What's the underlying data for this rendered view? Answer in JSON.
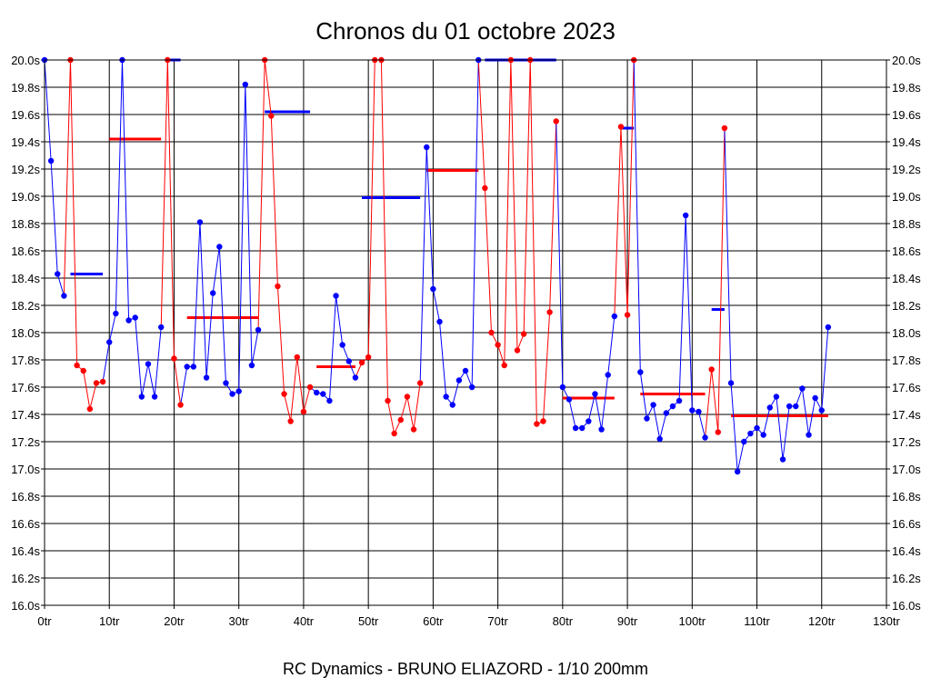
{
  "chart_data": {
    "type": "line",
    "title": "Chronos du 01 octobre 2023",
    "footer": "RC Dynamics - BRUNO ELIAZORD - 1/10 200mm",
    "xlim": [
      0,
      130
    ],
    "ylim": [
      16.0,
      20.0
    ],
    "x_ticks": [
      0,
      10,
      20,
      30,
      40,
      50,
      60,
      70,
      80,
      90,
      100,
      110,
      120,
      130
    ],
    "x_tick_labels": [
      "0tr",
      "10tr",
      "20tr",
      "30tr",
      "40tr",
      "50tr",
      "60tr",
      "70tr",
      "80tr",
      "90tr",
      "100tr",
      "110tr",
      "120tr",
      "130tr"
    ],
    "y_ticks": [
      16.0,
      16.2,
      16.4,
      16.6,
      16.8,
      17.0,
      17.2,
      17.4,
      17.6,
      17.8,
      18.0,
      18.2,
      18.4,
      18.6,
      18.8,
      19.0,
      19.2,
      19.4,
      19.6,
      19.8,
      20.0
    ],
    "y_tick_labels": [
      "16.0s",
      "16.2s",
      "16.4s",
      "16.6s",
      "16.8s",
      "17.0s",
      "17.2s",
      "17.4s",
      "17.6s",
      "17.8s",
      "18.0s",
      "18.2s",
      "18.4s",
      "18.6s",
      "18.8s",
      "19.0s",
      "19.2s",
      "19.4s",
      "19.6s",
      "19.8s",
      "20.0s"
    ],
    "grid": true,
    "series_colors": {
      "blue": "#0000ff",
      "red": "#ff0000"
    },
    "series": [
      {
        "color": "blue",
        "x": [
          0,
          1,
          2,
          3
        ],
        "y": [
          20.0,
          19.26,
          18.43,
          18.27
        ]
      },
      {
        "color": "red",
        "x": [
          4,
          5,
          6,
          7,
          8,
          9
        ],
        "y": [
          20.0,
          17.76,
          17.72,
          17.44,
          17.63,
          17.64
        ]
      },
      {
        "color": "blue",
        "x": [
          10,
          11,
          12,
          13,
          14,
          15,
          16,
          17,
          18
        ],
        "y": [
          17.93,
          18.14,
          20.0,
          18.09,
          18.11,
          17.53,
          17.77,
          17.53,
          18.04
        ]
      },
      {
        "color": "red",
        "x": [
          19,
          20,
          21
        ],
        "y": [
          20.0,
          17.81,
          17.47
        ]
      },
      {
        "color": "blue",
        "x": [
          22,
          23,
          24,
          25,
          26,
          27,
          28,
          29,
          30,
          31,
          32,
          33
        ],
        "y": [
          17.75,
          17.75,
          18.81,
          17.67,
          18.29,
          18.63,
          17.63,
          17.55,
          17.57,
          19.82,
          17.76,
          18.02
        ]
      },
      {
        "color": "red",
        "x": [
          34,
          35,
          36,
          37,
          38,
          39,
          40,
          41
        ],
        "y": [
          20.0,
          19.59,
          18.34,
          17.55,
          17.35,
          17.82,
          17.42,
          17.6
        ]
      },
      {
        "color": "blue",
        "x": [
          42,
          43,
          44,
          45,
          46,
          47,
          48
        ],
        "y": [
          17.56,
          17.55,
          17.5,
          18.27,
          17.91,
          17.79,
          17.67
        ]
      },
      {
        "color": "red",
        "x": [
          49,
          50,
          51,
          52,
          53,
          54,
          55,
          56,
          57,
          58
        ],
        "y": [
          17.78,
          17.82,
          20.0,
          20.0,
          17.5,
          17.26,
          17.36,
          17.53,
          17.29,
          17.63
        ]
      },
      {
        "color": "blue",
        "x": [
          59,
          60,
          61,
          62,
          63,
          64,
          65,
          66,
          67
        ],
        "y": [
          19.36,
          18.32,
          18.08,
          17.53,
          17.47,
          17.65,
          17.72,
          17.6,
          20.0
        ]
      },
      {
        "color": "red",
        "x": [
          68,
          69,
          70,
          71,
          72,
          73,
          74,
          75,
          76,
          77,
          78,
          79
        ],
        "y": [
          19.06,
          18.0,
          17.91,
          17.76,
          20.0,
          17.87,
          17.99,
          20.0,
          17.33,
          17.35,
          18.15,
          19.55
        ]
      },
      {
        "color": "blue",
        "x": [
          80,
          81,
          82,
          83,
          84,
          85,
          86,
          87,
          88
        ],
        "y": [
          17.6,
          17.51,
          17.3,
          17.3,
          17.35,
          17.55,
          17.29,
          17.69,
          18.12
        ]
      },
      {
        "color": "red",
        "x": [
          89,
          90,
          91
        ],
        "y": [
          19.51,
          18.13,
          20.0
        ]
      },
      {
        "color": "blue",
        "x": [
          92,
          93,
          94,
          95,
          96,
          97,
          98,
          99,
          100,
          101,
          102
        ],
        "y": [
          17.71,
          17.37,
          17.47,
          17.22,
          17.41,
          17.46,
          17.5,
          18.86,
          17.43,
          17.42,
          17.23
        ]
      },
      {
        "color": "red",
        "x": [
          103,
          104,
          105
        ],
        "y": [
          17.73,
          17.27,
          19.5
        ]
      },
      {
        "color": "blue",
        "x": [
          106,
          107,
          108,
          109,
          110,
          111,
          112,
          113,
          114,
          115,
          116,
          117,
          118,
          119,
          120,
          121
        ],
        "y": [
          17.63,
          16.98,
          17.2,
          17.26,
          17.3,
          17.25,
          17.45,
          17.53,
          17.07,
          17.46,
          17.46,
          17.59,
          17.25,
          17.52,
          17.43,
          18.04
        ]
      }
    ],
    "averages": [
      {
        "color": "blue",
        "x_start": 4,
        "x_end": 9,
        "y": 18.43
      },
      {
        "color": "red",
        "x_start": 10,
        "x_end": 18,
        "y": 19.42
      },
      {
        "color": "blue",
        "x_start": 19,
        "x_end": 21,
        "y": 20.0
      },
      {
        "color": "red",
        "x_start": 22,
        "x_end": 33,
        "y": 18.11
      },
      {
        "color": "blue",
        "x_start": 34,
        "x_end": 41,
        "y": 19.62
      },
      {
        "color": "red",
        "x_start": 42,
        "x_end": 48,
        "y": 17.75
      },
      {
        "color": "blue",
        "x_start": 49,
        "x_end": 58,
        "y": 18.99
      },
      {
        "color": "red",
        "x_start": 59,
        "x_end": 67,
        "y": 19.19
      },
      {
        "color": "blue",
        "x_start": 68,
        "x_end": 79,
        "y": 20.0
      },
      {
        "color": "red",
        "x_start": 80,
        "x_end": 88,
        "y": 17.52
      },
      {
        "color": "blue",
        "x_start": 89,
        "x_end": 91,
        "y": 19.5
      },
      {
        "color": "red",
        "x_start": 92,
        "x_end": 102,
        "y": 17.55
      },
      {
        "color": "blue",
        "x_start": 103,
        "x_end": 105,
        "y": 18.17
      },
      {
        "color": "red",
        "x_start": 106,
        "x_end": 121,
        "y": 17.39
      }
    ]
  }
}
